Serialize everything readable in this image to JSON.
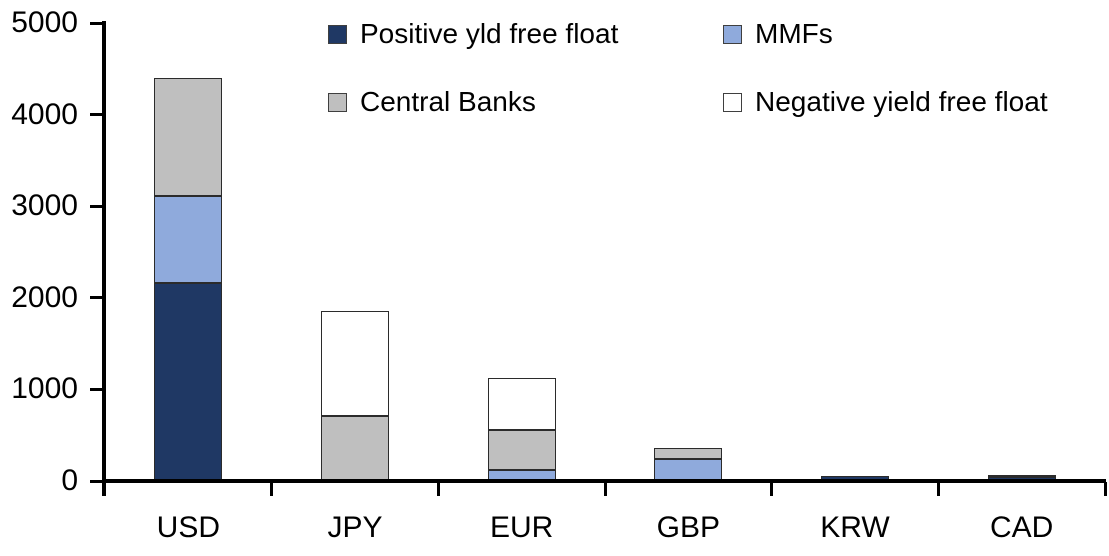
{
  "chart_data": {
    "type": "bar",
    "subtype": "stacked-vertical",
    "title": "",
    "xlabel": "",
    "ylabel": "",
    "categories": [
      "USD",
      "JPY",
      "EUR",
      "GBP",
      "KRW",
      "CAD"
    ],
    "series": [
      {
        "name": "Positive yld free float",
        "color": "#1F3864",
        "values": [
          2150,
          0,
          0,
          0,
          45,
          35
        ]
      },
      {
        "name": "MMFs",
        "color": "#8FAADC",
        "values": [
          950,
          0,
          110,
          230,
          0,
          0
        ]
      },
      {
        "name": "Central Banks",
        "color": "#BFBFBF",
        "values": [
          1290,
          700,
          440,
          120,
          0,
          20
        ]
      },
      {
        "name": "Negative yield free float",
        "color": "#FFFFFF",
        "values": [
          0,
          1140,
          560,
          0,
          0,
          0
        ]
      }
    ],
    "totals": [
      4390,
      1840,
      1110,
      350,
      45,
      55
    ],
    "ylim": [
      0,
      5000
    ],
    "yticks": [
      0,
      1000,
      2000,
      3000,
      4000,
      5000
    ],
    "ytick_labels": [
      "0",
      "1000",
      "2000",
      "3000",
      "4000",
      "5000"
    ],
    "grid": false,
    "legend_position": "top",
    "legend_layout": "2x2",
    "axis_color": "#000000",
    "background_color": "#ffffff"
  }
}
